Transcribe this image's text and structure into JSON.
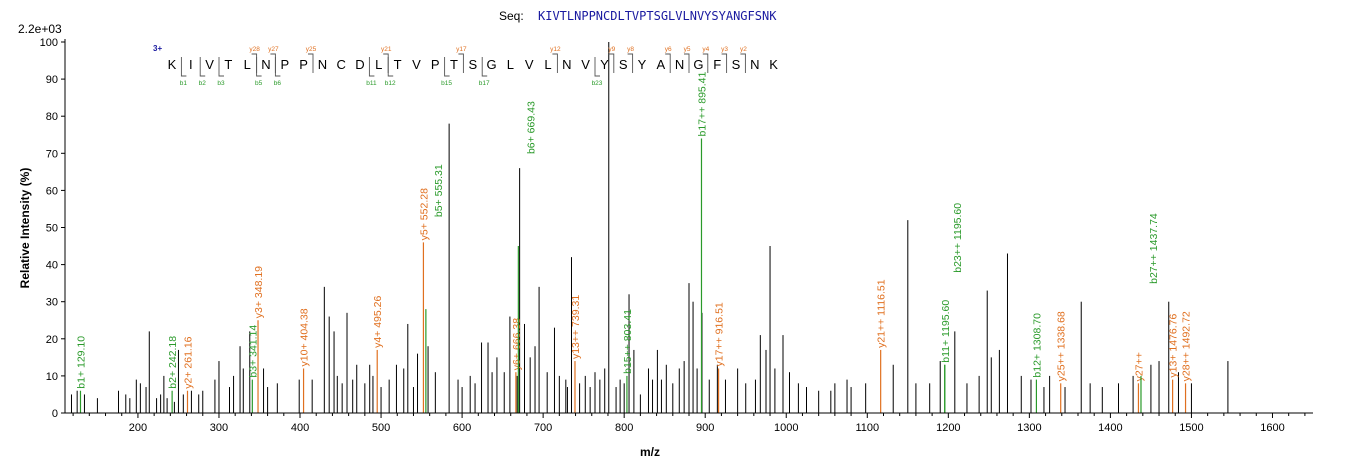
{
  "header": {
    "seq_label": "Seq:",
    "sequence": "KIVTLNPPNCDLTVPTSGLVLNVYSYANGFSNK",
    "scale_factor": "2.2e+03",
    "charge_state": "3+"
  },
  "fragment_map": {
    "residues": [
      "K",
      "I",
      "V",
      "T",
      "L",
      "N",
      "P",
      "P",
      "N",
      "C",
      "D",
      "L",
      "T",
      "V",
      "P",
      "T",
      "S",
      "G",
      "L",
      "V",
      "L",
      "N",
      "V",
      "Y",
      "S",
      "Y",
      "A",
      "N",
      "G",
      "F",
      "S",
      "N",
      "K"
    ],
    "y_ions": [
      {
        "after": 5,
        "label": "y28"
      },
      {
        "after": 6,
        "label": "y27"
      },
      {
        "after": 8,
        "label": "y25"
      },
      {
        "after": 12,
        "label": "y21"
      },
      {
        "after": 16,
        "label": "y17"
      },
      {
        "after": 21,
        "label": "y12"
      },
      {
        "after": 24,
        "label": "y9"
      },
      {
        "after": 25,
        "label": "y8"
      },
      {
        "after": 27,
        "label": "y6"
      },
      {
        "after": 28,
        "label": "y5"
      },
      {
        "after": 29,
        "label": "y4"
      },
      {
        "after": 30,
        "label": "y3"
      },
      {
        "after": 31,
        "label": "y2"
      }
    ],
    "b_ions": [
      {
        "after": 1,
        "label": "b1"
      },
      {
        "after": 2,
        "label": "b2"
      },
      {
        "after": 3,
        "label": "b3"
      },
      {
        "after": 5,
        "label": "b5"
      },
      {
        "after": 6,
        "label": "b6"
      },
      {
        "after": 11,
        "label": "b11"
      },
      {
        "after": 12,
        "label": "b12"
      },
      {
        "after": 15,
        "label": "b15"
      },
      {
        "after": 17,
        "label": "b17"
      },
      {
        "after": 23,
        "label": "b23"
      }
    ]
  },
  "colors": {
    "y_ion": "#e07020",
    "b_ion": "#2a9a2a",
    "unassigned": "#000000",
    "sequence": "#1a1aa0"
  },
  "chart_data": {
    "type": "bar",
    "xlabel": "m/z",
    "ylabel": "Relative   Intensity (%)",
    "xlim": [
      110,
      1650
    ],
    "ylim": [
      0,
      100
    ],
    "xticks": [
      200,
      300,
      400,
      500,
      600,
      700,
      800,
      900,
      1000,
      1100,
      1200,
      1300,
      1400,
      1500,
      1600
    ],
    "yticks": [
      0,
      10,
      20,
      30,
      40,
      50,
      60,
      70,
      80,
      90,
      100
    ],
    "grid": false,
    "annotated_peaks": [
      {
        "mz": 129.1,
        "intensity": 6,
        "ion": "b",
        "label": "b1+ 129.10"
      },
      {
        "mz": 242.18,
        "intensity": 6,
        "ion": "b",
        "label": "b2+ 242.18"
      },
      {
        "mz": 261.16,
        "intensity": 6,
        "ion": "y",
        "label": "y2+ 261.16"
      },
      {
        "mz": 341.14,
        "intensity": 9,
        "ion": "b",
        "label": "b3+ 341.14"
      },
      {
        "mz": 348.19,
        "intensity": 25,
        "ion": "y",
        "label": "y3+ 348.19"
      },
      {
        "mz": 404.38,
        "intensity": 12,
        "ion": "y",
        "label": "y10+ 404.38"
      },
      {
        "mz": 495.26,
        "intensity": 17,
        "ion": "y",
        "label": "y4+ 495.26"
      },
      {
        "mz": 552.28,
        "intensity": 46,
        "ion": "y",
        "label": "y5+ 552.28"
      },
      {
        "mz": 555.31,
        "intensity": 28,
        "ion": "b",
        "label": "b5+ 555.31"
      },
      {
        "mz": 666.38,
        "intensity": 11,
        "ion": "y",
        "label": "y6+ 666.38"
      },
      {
        "mz": 669.43,
        "intensity": 45,
        "ion": "b",
        "label": "b6+ 669.43"
      },
      {
        "mz": 739.31,
        "intensity": 14,
        "ion": "y",
        "label": "y13++ 739.31"
      },
      {
        "mz": 803.41,
        "intensity": 10,
        "ion": "b",
        "label": "b15++ 803.41"
      },
      {
        "mz": 895.41,
        "intensity": 74,
        "ion": "b",
        "label": "b17++ 895.41"
      },
      {
        "mz": 916.51,
        "intensity": 12,
        "ion": "y",
        "label": "y17++ 916.51"
      },
      {
        "mz": 1116.51,
        "intensity": 17,
        "ion": "y",
        "label": "y21++ 1116.51"
      },
      {
        "mz": 1195.6,
        "intensity": 13,
        "ion": "b",
        "label": "b11+ 1195.60"
      },
      {
        "mz": 1195.6,
        "intensity": 13,
        "ion": "b",
        "label": "b23++ 1195.60"
      },
      {
        "mz": 1308.7,
        "intensity": 9,
        "ion": "b",
        "label": "b12+ 1308.70"
      },
      {
        "mz": 1338.68,
        "intensity": 8,
        "ion": "y",
        "label": "y25++ 1338.68"
      },
      {
        "mz": 1434.6,
        "intensity": 8,
        "ion": "y",
        "label": "y27++"
      },
      {
        "mz": 1437.74,
        "intensity": 10,
        "ion": "b",
        "label": "b27++ 1437.74"
      },
      {
        "mz": 1476.76,
        "intensity": 9,
        "ion": "y",
        "label": "y13+ 1476.76"
      },
      {
        "mz": 1492.72,
        "intensity": 8,
        "ion": "y",
        "label": "y28++ 1492.72"
      }
    ],
    "peaks": [
      [
        118,
        5
      ],
      [
        125,
        6
      ],
      [
        134,
        5
      ],
      [
        150,
        4
      ],
      [
        176,
        6
      ],
      [
        185,
        5
      ],
      [
        190,
        4
      ],
      [
        198,
        9
      ],
      [
        203,
        8
      ],
      [
        210,
        7
      ],
      [
        214,
        22
      ],
      [
        223,
        4
      ],
      [
        228,
        5
      ],
      [
        232,
        10
      ],
      [
        236,
        4
      ],
      [
        245,
        3
      ],
      [
        250,
        17
      ],
      [
        256,
        5
      ],
      [
        266,
        6
      ],
      [
        275,
        5
      ],
      [
        280,
        6
      ],
      [
        295,
        9
      ],
      [
        300,
        14
      ],
      [
        313,
        7
      ],
      [
        318,
        10
      ],
      [
        326,
        18
      ],
      [
        330,
        12
      ],
      [
        338,
        22
      ],
      [
        355,
        12
      ],
      [
        360,
        7
      ],
      [
        372,
        8
      ],
      [
        399,
        9
      ],
      [
        415,
        9
      ],
      [
        430,
        34
      ],
      [
        436,
        26
      ],
      [
        442,
        22
      ],
      [
        446,
        10
      ],
      [
        452,
        8
      ],
      [
        458,
        27
      ],
      [
        465,
        9
      ],
      [
        470,
        13
      ],
      [
        480,
        8
      ],
      [
        486,
        13
      ],
      [
        490,
        10
      ],
      [
        500,
        7
      ],
      [
        510,
        9
      ],
      [
        519,
        13
      ],
      [
        528,
        12
      ],
      [
        533,
        24
      ],
      [
        540,
        7
      ],
      [
        545,
        16
      ],
      [
        558,
        18
      ],
      [
        567,
        11
      ],
      [
        584,
        78
      ],
      [
        595,
        9
      ],
      [
        600,
        7
      ],
      [
        610,
        10
      ],
      [
        616,
        8
      ],
      [
        624,
        19
      ],
      [
        632,
        19
      ],
      [
        637,
        11
      ],
      [
        643,
        15
      ],
      [
        652,
        11
      ],
      [
        659,
        26
      ],
      [
        668,
        10
      ],
      [
        671,
        66
      ],
      [
        677,
        24
      ],
      [
        684,
        15
      ],
      [
        690,
        18
      ],
      [
        695,
        34
      ],
      [
        705,
        11
      ],
      [
        714,
        23
      ],
      [
        720,
        10
      ],
      [
        728,
        9
      ],
      [
        730,
        7
      ],
      [
        735,
        42
      ],
      [
        745,
        8
      ],
      [
        752,
        10
      ],
      [
        758,
        7
      ],
      [
        764,
        11
      ],
      [
        770,
        9
      ],
      [
        776,
        12
      ],
      [
        781,
        100
      ],
      [
        790,
        7
      ],
      [
        795,
        9
      ],
      [
        800,
        8
      ],
      [
        806,
        32
      ],
      [
        812,
        17
      ],
      [
        820,
        5
      ],
      [
        830,
        12
      ],
      [
        835,
        9
      ],
      [
        841,
        17
      ],
      [
        846,
        9
      ],
      [
        852,
        13
      ],
      [
        860,
        8
      ],
      [
        868,
        12
      ],
      [
        874,
        14
      ],
      [
        880,
        35
      ],
      [
        885,
        30
      ],
      [
        890,
        12
      ],
      [
        896,
        27
      ],
      [
        905,
        9
      ],
      [
        915,
        13
      ],
      [
        925,
        9
      ],
      [
        940,
        12
      ],
      [
        950,
        8
      ],
      [
        962,
        9
      ],
      [
        968,
        21
      ],
      [
        975,
        17
      ],
      [
        980,
        45
      ],
      [
        986,
        12
      ],
      [
        996,
        21
      ],
      [
        1004,
        11
      ],
      [
        1015,
        8
      ],
      [
        1025,
        7
      ],
      [
        1040,
        6
      ],
      [
        1055,
        6
      ],
      [
        1060,
        8
      ],
      [
        1075,
        9
      ],
      [
        1080,
        7
      ],
      [
        1098,
        8
      ],
      [
        1132,
        13
      ],
      [
        1150,
        52
      ],
      [
        1160,
        8
      ],
      [
        1177,
        8
      ],
      [
        1190,
        14
      ],
      [
        1208,
        22
      ],
      [
        1223,
        8
      ],
      [
        1238,
        10
      ],
      [
        1248,
        33
      ],
      [
        1253,
        15
      ],
      [
        1263,
        17
      ],
      [
        1273,
        43
      ],
      [
        1290,
        10
      ],
      [
        1302,
        9
      ],
      [
        1318,
        7
      ],
      [
        1325,
        10
      ],
      [
        1344,
        7
      ],
      [
        1364,
        30
      ],
      [
        1375,
        8
      ],
      [
        1390,
        7
      ],
      [
        1410,
        8
      ],
      [
        1428,
        10
      ],
      [
        1450,
        13
      ],
      [
        1460,
        14
      ],
      [
        1472,
        30
      ],
      [
        1484,
        11
      ],
      [
        1500,
        8
      ],
      [
        1545,
        14
      ]
    ]
  }
}
